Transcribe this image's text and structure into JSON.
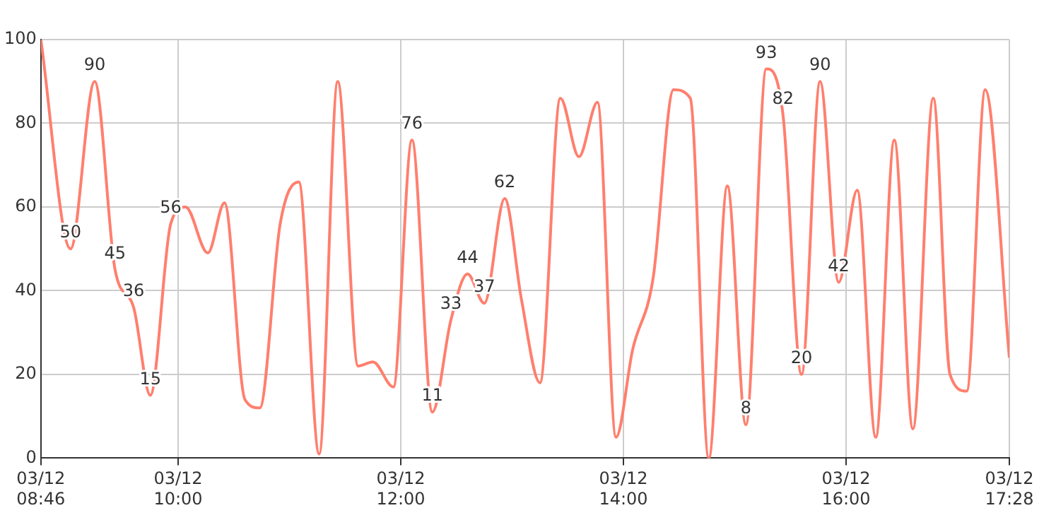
{
  "chart_data": {
    "type": "line",
    "x": [
      "--03-12T08:46",
      "--03-12T09:02",
      "--03-12T09:15",
      "--03-12T09:26",
      "--03-12T09:36",
      "--03-12T09:45",
      "--03-12T09:56",
      "--03-12T10:04",
      "--03-12T10:16",
      "--03-12T10:25",
      "--03-12T10:36",
      "--03-12T10:44",
      "--03-12T10:55",
      "--03-12T11:05",
      "--03-12T11:16",
      "--03-12T11:26",
      "--03-12T11:37",
      "--03-12T11:45",
      "--03-12T11:56",
      "--03-12T12:06",
      "--03-12T12:17",
      "--03-12T12:27",
      "--03-12T12:36",
      "--03-12T12:45",
      "--03-12T12:56",
      "--03-12T13:05",
      "--03-12T13:15",
      "--03-12T13:26",
      "--03-12T13:36",
      "--03-12T13:46",
      "--03-12T13:56",
      "--03-12T14:05",
      "--03-12T14:16",
      "--03-12T14:27",
      "--03-12T14:36",
      "--03-12T14:46",
      "--03-12T14:56",
      "--03-12T15:06",
      "--03-12T15:17",
      "--03-12T15:26",
      "--03-12T15:36",
      "--03-12T15:46",
      "--03-12T15:56",
      "--03-12T16:06",
      "--03-12T16:16",
      "--03-12T16:26",
      "--03-12T16:36",
      "--03-12T16:47",
      "--03-12T16:56",
      "--03-12T17:05",
      "--03-12T17:15",
      "--03-12T17:28"
    ],
    "series": [
      {
        "color": "#ff7f6e",
        "values": [
          100,
          50,
          90,
          45,
          36,
          15,
          56,
          60,
          49,
          61,
          14,
          12,
          56,
          66,
          1,
          90,
          22,
          23,
          17,
          76,
          11,
          33,
          44,
          37,
          62,
          38,
          18,
          86,
          72,
          85,
          5,
          26,
          43,
          88,
          86,
          0,
          65,
          8,
          93,
          82,
          20,
          90,
          42,
          64,
          5,
          76,
          7,
          86,
          20,
          16,
          88,
          24
        ],
        "value_labels": [
          null,
          "50",
          "90",
          "45",
          "36",
          "15",
          "56",
          null,
          null,
          null,
          null,
          null,
          null,
          null,
          null,
          null,
          null,
          null,
          null,
          "76",
          "11",
          "33",
          "44",
          "37",
          "62",
          null,
          null,
          null,
          null,
          null,
          null,
          null,
          null,
          null,
          null,
          null,
          null,
          "8",
          "93",
          "82",
          "20",
          "90",
          "42",
          null,
          null,
          null,
          null,
          null,
          null,
          null,
          null,
          null
        ]
      }
    ],
    "xlim": [
      "--03-12T08:46",
      "--03-12T17:28"
    ],
    "xticks": [
      {
        "value": "--03-12T08:46",
        "label": "03/12\n08:46"
      },
      {
        "value": "--03-12T10:00",
        "label": "03/12\n10:00"
      },
      {
        "value": "--03-12T12:00",
        "label": "03/12\n12:00"
      },
      {
        "value": "--03-12T14:00",
        "label": "03/12\n14:00"
      },
      {
        "value": "--03-12T16:00",
        "label": "03/12\n16:00"
      },
      {
        "value": "--03-12T17:28",
        "label": "03/12\n17:28"
      }
    ],
    "ylim": [
      0,
      100
    ],
    "yticks": [
      0,
      20,
      40,
      60,
      80,
      100
    ],
    "grid": true,
    "legend": false,
    "marker": "none",
    "line_style": "solid"
  }
}
